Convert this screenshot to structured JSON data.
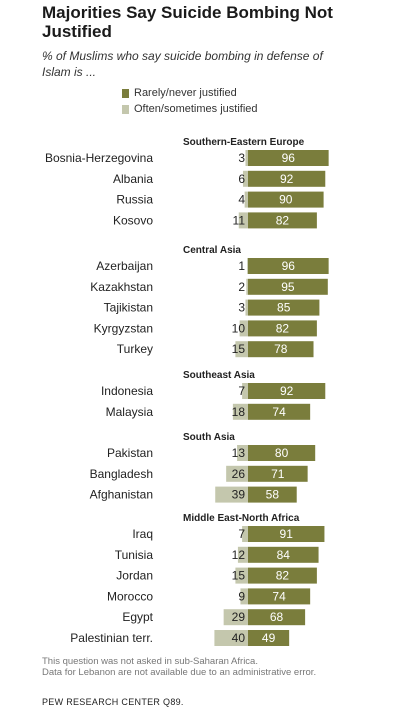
{
  "title": "Majorities Say Suicide Bombing Not Justified",
  "subtitle": "% of Muslims who say suicide bombing in defense of Islam is ...",
  "legend": [
    {
      "label": "Rarely/never justified",
      "color": "#7a7d3c"
    },
    {
      "label": "Often/sometimes justified",
      "color": "#c4c7ad"
    }
  ],
  "notes": {
    "line1": "This question was not asked in sub-Saharan Africa.",
    "line2": "Data for Lebanon are not available due to an administrative error."
  },
  "source": "PEW RESEARCH CENTER Q89.",
  "chart_data": {
    "type": "bar",
    "orientation": "horizontal",
    "stacked": "diverging",
    "series": [
      {
        "name": "Rarely/never justified",
        "color": "#7a7d3c"
      },
      {
        "name": "Often/sometimes justified",
        "color": "#c4c7ad"
      }
    ],
    "groups": [
      {
        "label": "Southern-Eastern Europe",
        "rows": [
          {
            "country": "Bosnia-Herzegovina",
            "often": 3,
            "rarely": 96
          },
          {
            "country": "Albania",
            "often": 6,
            "rarely": 92
          },
          {
            "country": "Russia",
            "often": 4,
            "rarely": 90
          },
          {
            "country": "Kosovo",
            "often": 11,
            "rarely": 82
          }
        ]
      },
      {
        "label": "Central Asia",
        "rows": [
          {
            "country": "Azerbaijan",
            "often": 1,
            "rarely": 96
          },
          {
            "country": "Kazakhstan",
            "often": 2,
            "rarely": 95
          },
          {
            "country": "Tajikistan",
            "often": 3,
            "rarely": 85
          },
          {
            "country": "Kyrgyzstan",
            "often": 10,
            "rarely": 82
          },
          {
            "country": "Turkey",
            "often": 15,
            "rarely": 78
          }
        ]
      },
      {
        "label": "Southeast Asia",
        "rows": [
          {
            "country": "Indonesia",
            "often": 7,
            "rarely": 92
          },
          {
            "country": "Malaysia",
            "often": 18,
            "rarely": 74
          }
        ]
      },
      {
        "label": "South Asia",
        "rows": [
          {
            "country": "Pakistan",
            "often": 13,
            "rarely": 80
          },
          {
            "country": "Bangladesh",
            "often": 26,
            "rarely": 71
          },
          {
            "country": "Afghanistan",
            "often": 39,
            "rarely": 58
          }
        ]
      },
      {
        "label": "Middle East-North Africa",
        "rows": [
          {
            "country": "Iraq",
            "often": 7,
            "rarely": 91
          },
          {
            "country": "Tunisia",
            "often": 12,
            "rarely": 84
          },
          {
            "country": "Jordan",
            "often": 15,
            "rarely": 82
          },
          {
            "country": "Morocco",
            "often": 9,
            "rarely": 74
          },
          {
            "country": "Egypt",
            "often": 29,
            "rarely": 68
          },
          {
            "country": "Palestinian terr.",
            "often": 40,
            "rarely": 49
          }
        ]
      }
    ]
  }
}
